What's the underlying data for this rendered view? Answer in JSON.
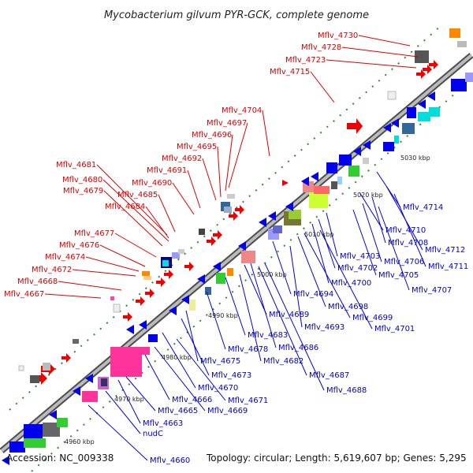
{
  "title": "Mycobacterium gilvum PYR-GCK, complete genome",
  "footer": {
    "accession": "Accession: NC_009338",
    "summary": "Topology: circular; Length: 5,619,607 bp; Genes: 5,295"
  },
  "colors": {
    "forward_label": "#dd0000",
    "reverse_label": "#0000dd",
    "backbone": "#888888"
  },
  "ticks": [
    "4960 kbp",
    "4970 kbp",
    "4980 kbp",
    "4990 kbp",
    "5000 kbp",
    "5010 kbp",
    "5020 kbp",
    "5030 kbp"
  ],
  "forward_labels": [
    "Mflv_4730",
    "Mflv_4728",
    "Mflv_4723",
    "Mflv_4715",
    "Mflv_4704",
    "Mflv_4697",
    "Mflv_4696",
    "Mflv_4695",
    "Mflv_4692",
    "Mflv_4691",
    "Mflv_4690",
    "Mflv_4681",
    "Mflv_4680",
    "Mflv_4679",
    "Mflv_4685",
    "Mflv_4684",
    "Mflv_4677",
    "Mflv_4676",
    "Mflv_4674",
    "Mflv_4672",
    "Mflv_4668",
    "Mflv_4667"
  ],
  "reverse_labels": [
    "Mflv_4714",
    "Mflv_4710",
    "Mflv_4712",
    "Mflv_4708",
    "Mflv_4711",
    "Mflv_4706",
    "Mflv_4703",
    "Mflv_4705",
    "Mflv_4707",
    "Mflv_4702",
    "Mflv_4700",
    "Mflv_4694",
    "Mflv_4698",
    "Mflv_4699",
    "Mflv_4701",
    "Mflv_4689",
    "Mflv_4693",
    "Mflv_4683",
    "Mflv_4686",
    "Mflv_4678",
    "Mflv_4682",
    "Mflv_4675",
    "Mflv_4687",
    "Mflv_4673",
    "Mflv_4688",
    "Mflv_4670",
    "Mflv_4671",
    "Mflv_4666",
    "Mflv_4669",
    "Mflv_4665",
    "Mflv_4663",
    "nudC",
    "Mflv_4660"
  ]
}
